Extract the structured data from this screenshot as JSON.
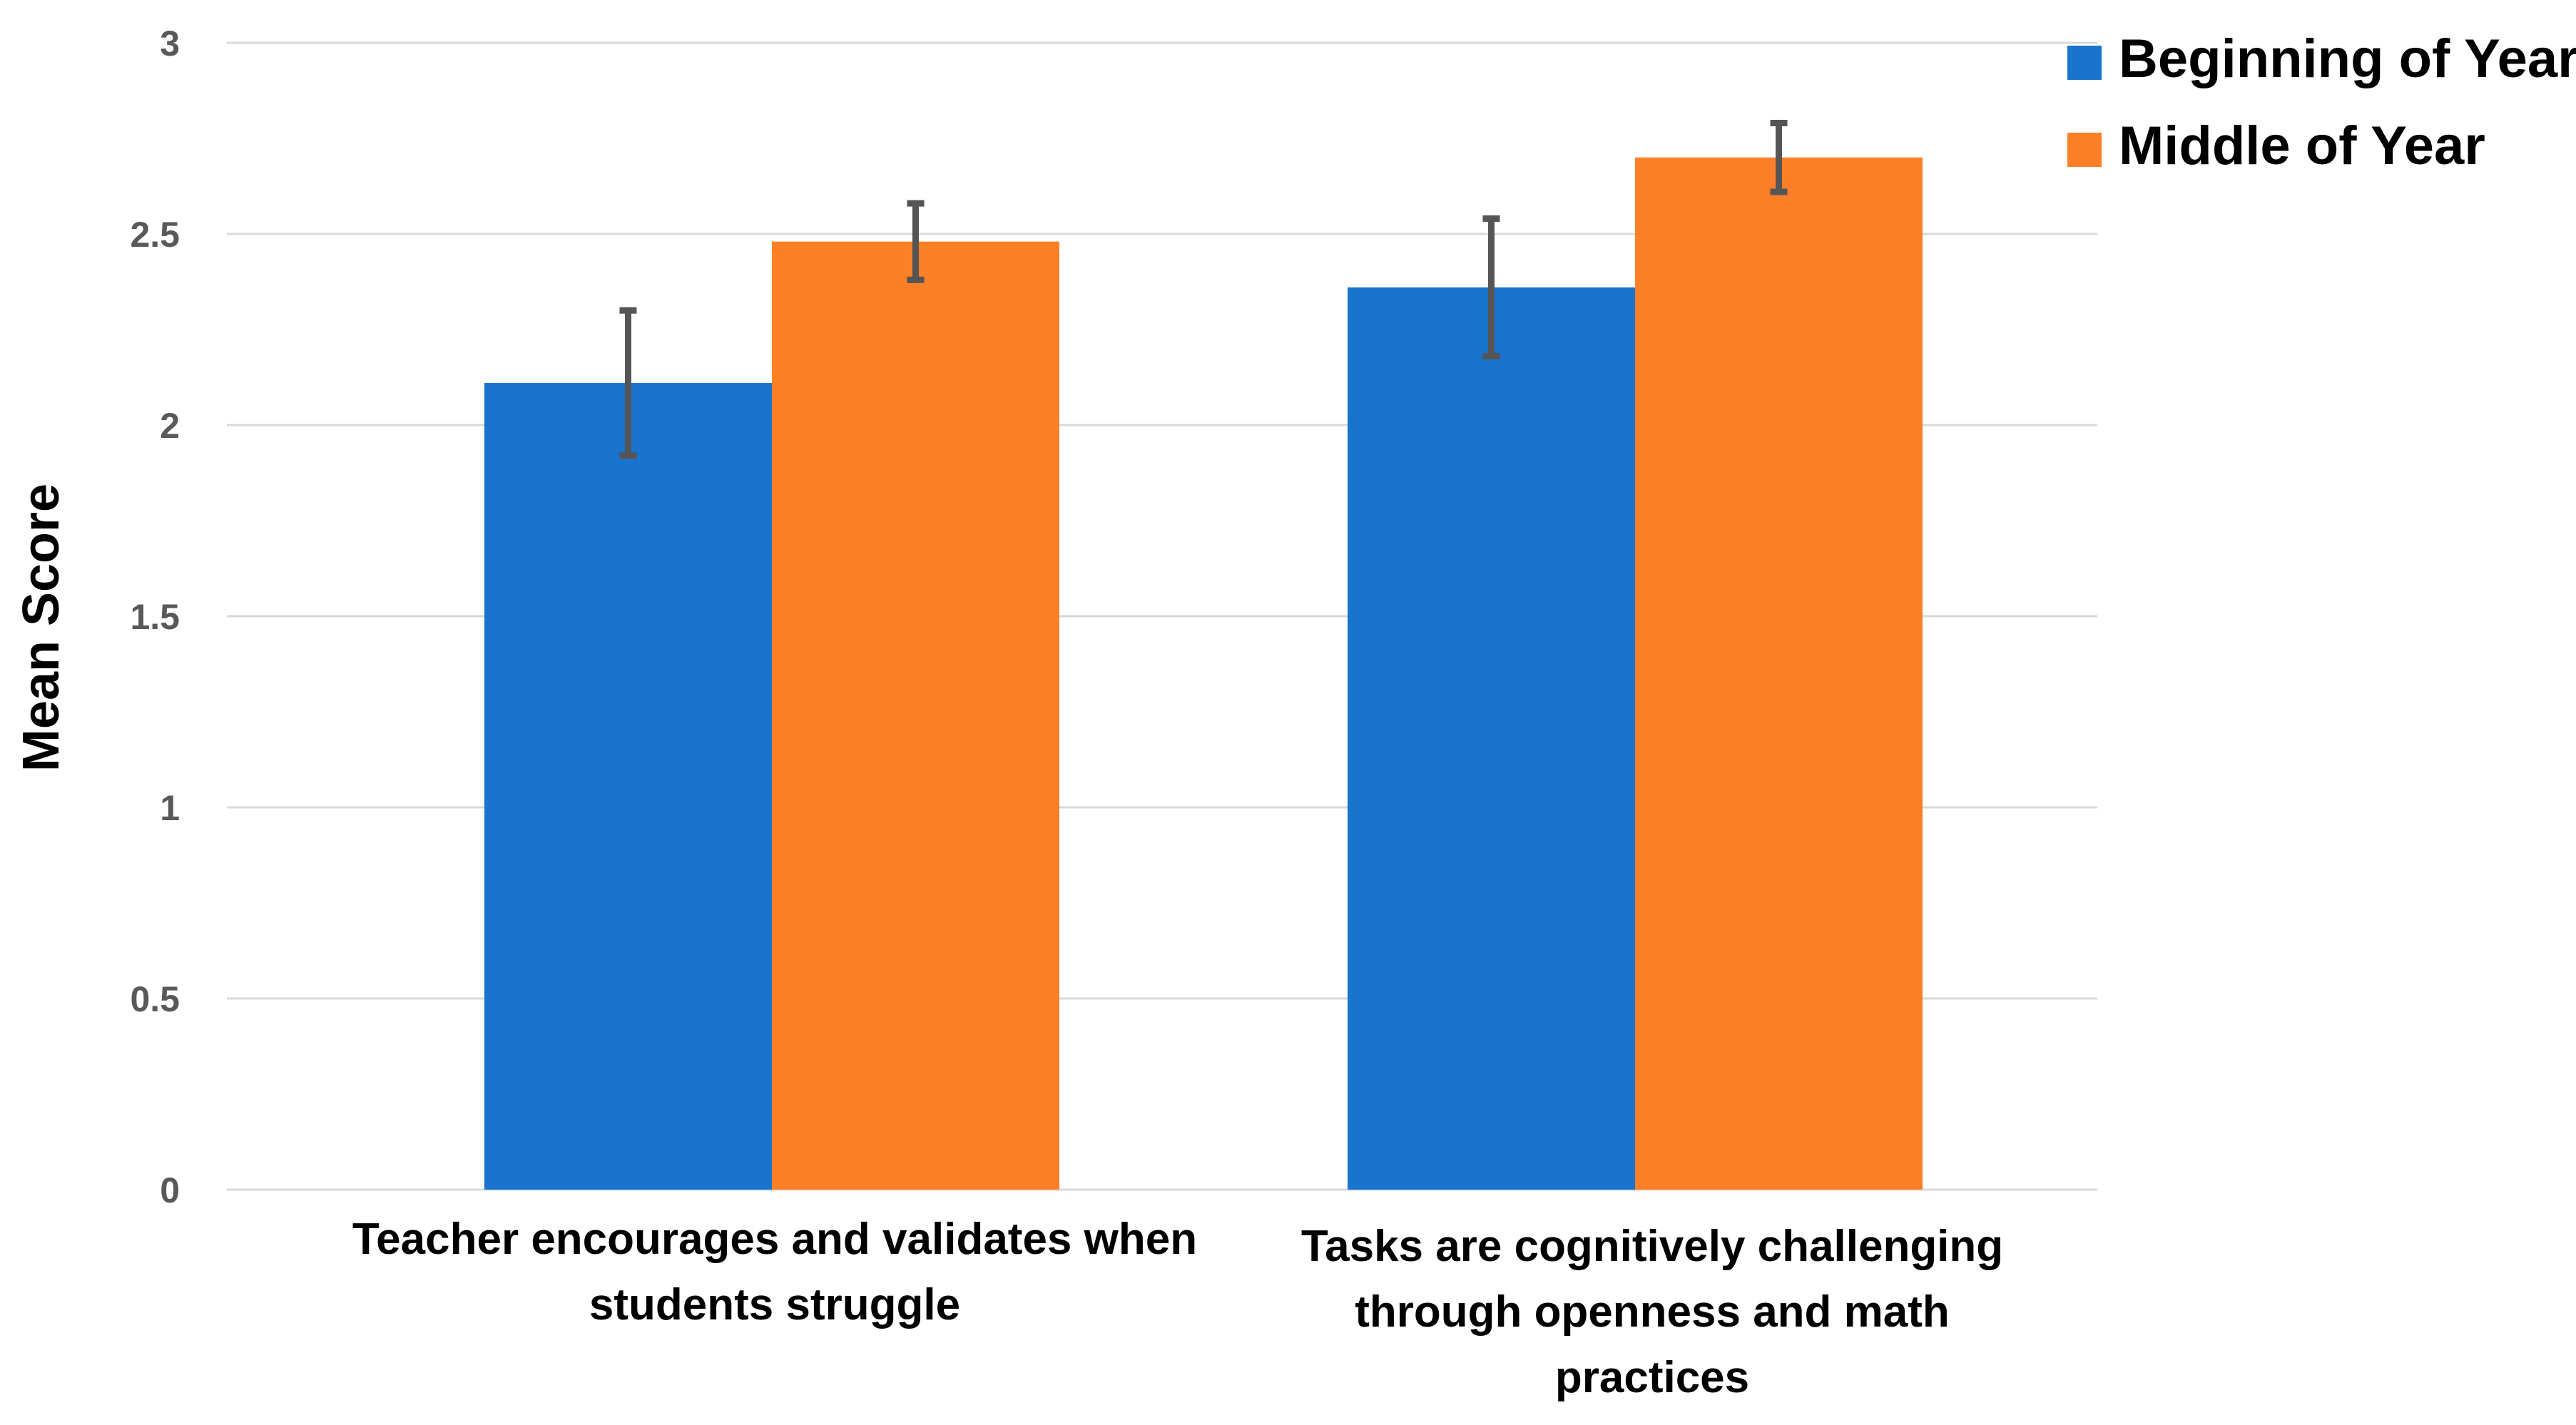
{
  "chart_data": {
    "type": "bar",
    "ylabel": "Mean Score",
    "xlabel": "",
    "ylim": [
      0,
      3
    ],
    "ytick_values": [
      0,
      0.5,
      1,
      1.5,
      2,
      2.5,
      3
    ],
    "ytick_labels": [
      "0",
      "0.5",
      "1",
      "1.5",
      "2",
      "2.5",
      "3"
    ],
    "grid": true,
    "legend_position": "top-right",
    "categories": [
      {
        "name": "Teacher encourages and validates when students struggle",
        "label_lines": [
          "Teacher encourages and validates when",
          "students struggle"
        ]
      },
      {
        "name": "Tasks are cognitively challenging through openness and math practices",
        "label_lines": [
          "Tasks are cognitively challenging",
          "through openness and math",
          "practices"
        ]
      }
    ],
    "series": [
      {
        "name": "Beginning of Year",
        "color": "#1874cd",
        "values": [
          2.11,
          2.36
        ],
        "error_low": [
          1.92,
          2.18
        ],
        "error_high": [
          2.3,
          2.54
        ]
      },
      {
        "name": "Middle of Year",
        "color": "#fd7f28",
        "values": [
          2.48,
          2.7
        ],
        "error_low": [
          2.38,
          2.61
        ],
        "error_high": [
          2.58,
          2.79
        ]
      }
    ],
    "error_bar_color": "#555555"
  }
}
